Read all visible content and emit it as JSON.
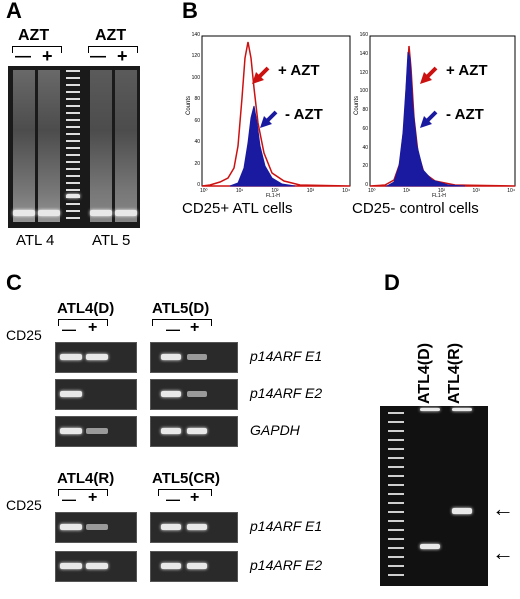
{
  "panels": {
    "A": {
      "letter": "A",
      "treatment": "AZT",
      "minus": "—",
      "plus": "+",
      "lane_labels": [
        "ATL 4",
        "ATL 5"
      ]
    },
    "B": {
      "letter": "B",
      "plots": [
        {
          "caption": "CD25+ ATL cells",
          "plus_label": "+ AZT",
          "minus_label": "- AZT",
          "xlabel": "FL1-H",
          "ylabel": "Counts",
          "yticks": [
            "0",
            "20",
            "40",
            "60",
            "80",
            "100",
            "120",
            "140"
          ],
          "xticks": [
            "10⁰",
            "10¹",
            "10²",
            "10³",
            "10⁴"
          ]
        },
        {
          "caption": "CD25- control cells",
          "plus_label": "+ AZT",
          "minus_label": "- AZT",
          "xlabel": "FL1-H",
          "ylabel": "Counts",
          "yticks": [
            "0",
            "20",
            "40",
            "60",
            "80",
            "100",
            "120",
            "140",
            "160"
          ],
          "xticks": [
            "10⁰",
            "10¹",
            "10²",
            "10³",
            "10⁴"
          ]
        }
      ],
      "colors": {
        "plus": "#cc1111",
        "minus": "#1a1aa0"
      }
    },
    "C": {
      "letter": "C",
      "cd25": "CD25",
      "minus": "—",
      "plus": "+",
      "top_groups": [
        "ATL4(D)",
        "ATL5(D)"
      ],
      "bottom_groups": [
        "ATL4(R)",
        "ATL5(CR)"
      ],
      "top_genes": [
        "p14ARF E1",
        "p14ARF E2",
        "GAPDH"
      ],
      "bottom_genes": [
        "p14ARF E1",
        "p14ARF E2"
      ]
    },
    "D": {
      "letter": "D",
      "lane_labels": [
        "ATL4(D)",
        "ATL4(R)"
      ],
      "arrow": "←"
    }
  }
}
